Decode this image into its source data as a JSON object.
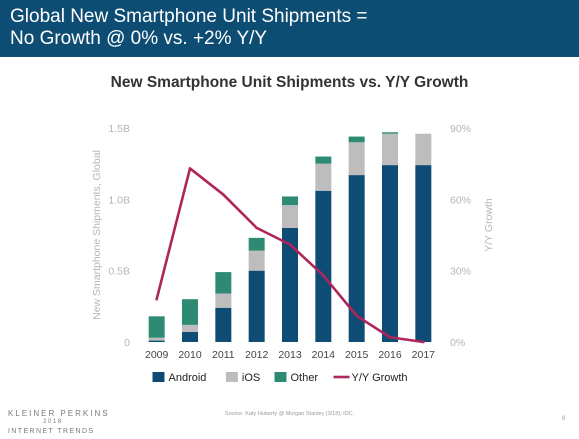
{
  "header": {
    "title_line1": "Global New Smartphone Unit Shipments =",
    "title_line2": "No Growth @ 0% vs. +2% Y/Y"
  },
  "footer": {
    "brand": "KLEINER PERKINS",
    "year": "2018",
    "subtitle": "INTERNET TRENDS",
    "source": "Source: Katy Huberty @ Morgan Stanley (3/18), IDC.",
    "page_number": "6"
  },
  "colors": {
    "header_bg": "#0e4d73",
    "android": "#0f4c75",
    "ios": "#bdbdbd",
    "other": "#2e8b73",
    "growth": "#b0245c"
  },
  "chart_data": {
    "type": "bar",
    "stacked": true,
    "title": "New Smartphone Unit Shipments vs. Y/Y Growth",
    "categories": [
      "2009",
      "2010",
      "2011",
      "2012",
      "2013",
      "2014",
      "2015",
      "2016",
      "2017"
    ],
    "ylabel": "New Smartphone Shipments, Global",
    "y2label": "Y/Y Growth",
    "ylim": [
      0,
      1.5
    ],
    "y2lim": [
      0,
      90
    ],
    "yticks": [
      "0",
      "0.5B",
      "1.0B",
      "1.5B"
    ],
    "y2ticks": [
      "0%",
      "30%",
      "60%",
      "90%"
    ],
    "series": [
      {
        "name": "Android",
        "values": [
          0.01,
          0.07,
          0.24,
          0.5,
          0.8,
          1.06,
          1.17,
          1.24,
          1.24
        ]
      },
      {
        "name": "iOS",
        "values": [
          0.02,
          0.05,
          0.1,
          0.14,
          0.16,
          0.19,
          0.23,
          0.22,
          0.22
        ]
      },
      {
        "name": "Other",
        "values": [
          0.15,
          0.18,
          0.15,
          0.09,
          0.06,
          0.05,
          0.04,
          0.01,
          0.0
        ]
      }
    ],
    "line_series": {
      "name": "Y/Y Growth",
      "values": [
        18,
        73,
        62,
        48,
        41,
        28,
        11,
        2,
        0
      ]
    },
    "legend_position": "bottom"
  }
}
